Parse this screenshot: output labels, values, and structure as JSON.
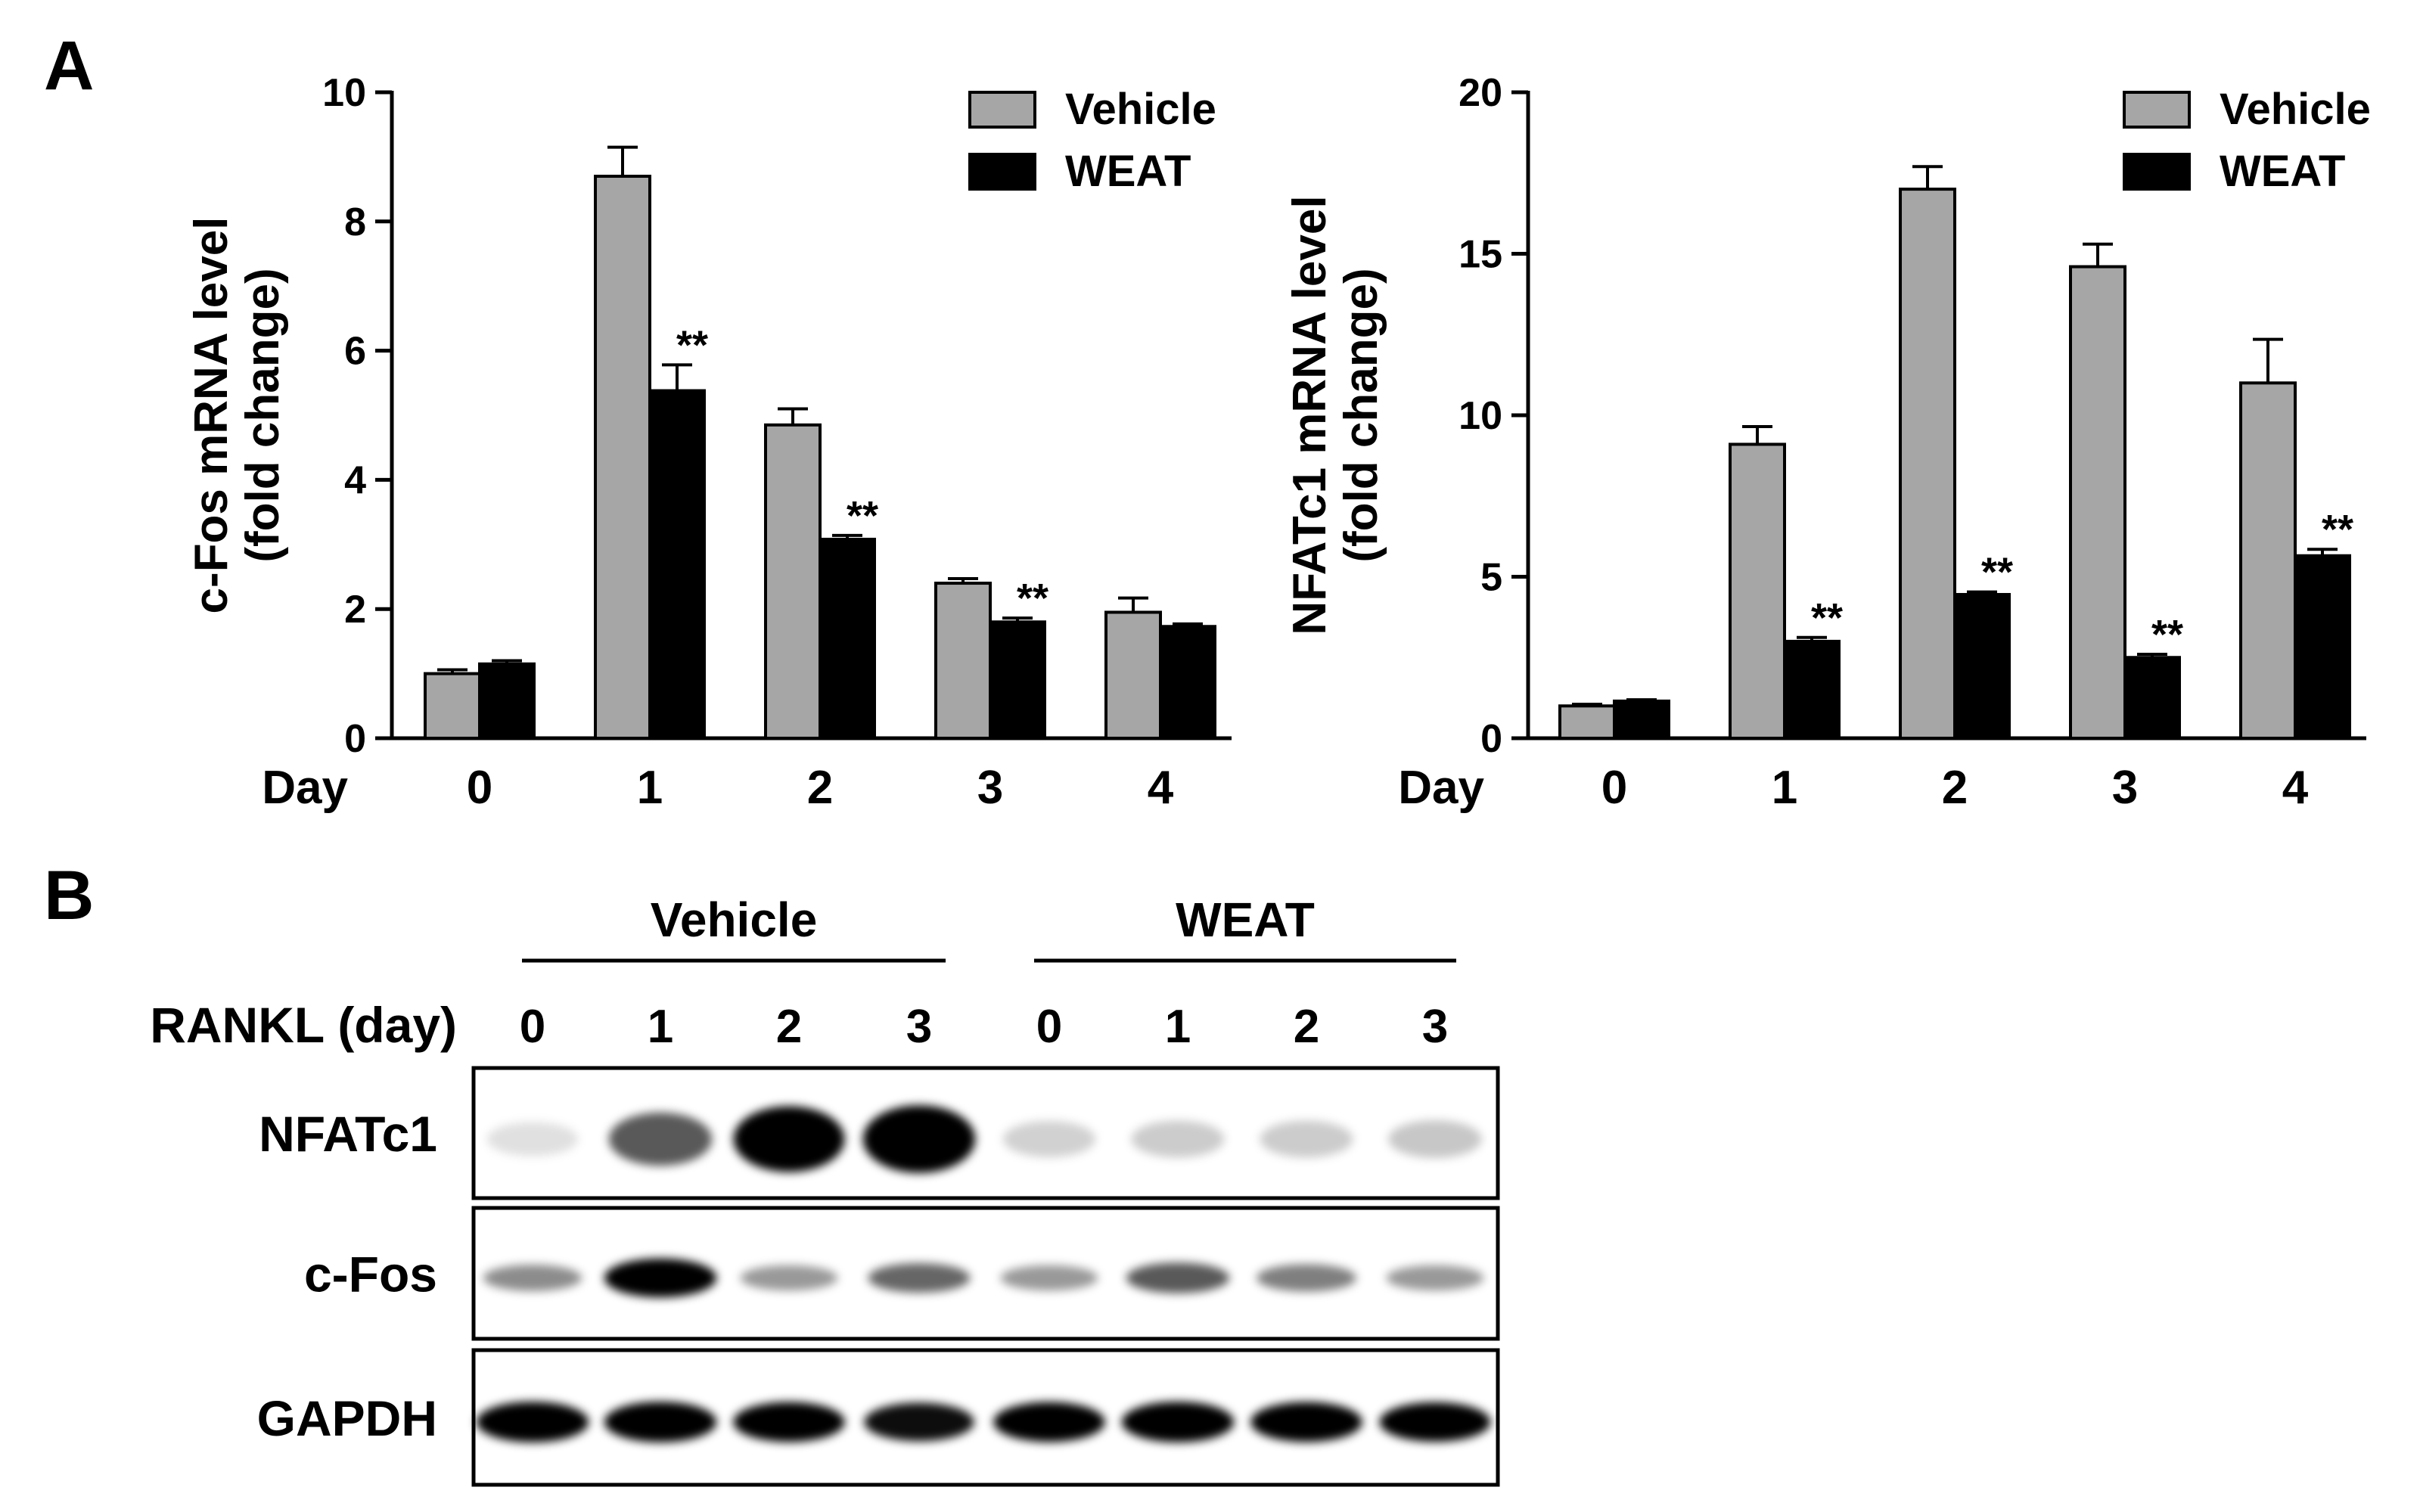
{
  "panel_labels": {
    "a": "A",
    "b": "B"
  },
  "colors": {
    "vehicle": "#a6a6a6",
    "weat": "#000000",
    "axis": "#000000"
  },
  "chart_data": [
    {
      "type": "bar",
      "title": "",
      "xlabel": "Day",
      "ylabel": [
        "c-Fos mRNA level",
        "(fold change)"
      ],
      "categories": [
        "0",
        "1",
        "2",
        "3",
        "4"
      ],
      "ylim": [
        0,
        10
      ],
      "yticks": [
        "0",
        "2",
        "4",
        "6",
        "8",
        "10"
      ],
      "legend_position": "top-right",
      "series": [
        {
          "name": "Vehicle",
          "values": [
            1.0,
            8.7,
            4.85,
            2.4,
            1.95
          ],
          "errors": [
            0.06,
            0.45,
            0.25,
            0.07,
            0.22
          ]
        },
        {
          "name": "WEAT",
          "values": [
            1.15,
            5.38,
            3.08,
            1.8,
            1.73
          ],
          "errors": [
            0.05,
            0.4,
            0.06,
            0.06,
            0.04
          ]
        }
      ],
      "annotations": [
        {
          "category": "1",
          "series": "WEAT",
          "text": "**"
        },
        {
          "category": "2",
          "series": "WEAT",
          "text": "**"
        },
        {
          "category": "3",
          "series": "WEAT",
          "text": "**"
        }
      ]
    },
    {
      "type": "bar",
      "title": "",
      "xlabel": "Day",
      "ylabel": [
        "NFATc1 mRNA level",
        "(fold change)"
      ],
      "categories": [
        "0",
        "1",
        "2",
        "3",
        "4"
      ],
      "ylim": [
        0,
        20
      ],
      "yticks": [
        "0",
        "5",
        "10",
        "15",
        "20"
      ],
      "legend_position": "top-right",
      "series": [
        {
          "name": "Vehicle",
          "values": [
            1.0,
            9.1,
            17.0,
            14.6,
            11.0
          ],
          "errors": [
            0.05,
            0.55,
            0.7,
            0.7,
            1.35
          ]
        },
        {
          "name": "WEAT",
          "values": [
            1.15,
            3.0,
            4.45,
            2.5,
            5.65
          ],
          "errors": [
            0.04,
            0.12,
            0.08,
            0.1,
            0.2
          ]
        }
      ],
      "annotations": [
        {
          "category": "1",
          "series": "WEAT",
          "text": "**"
        },
        {
          "category": "2",
          "series": "WEAT",
          "text": "**"
        },
        {
          "category": "3",
          "series": "WEAT",
          "text": "**"
        },
        {
          "category": "4",
          "series": "WEAT",
          "text": "**"
        }
      ]
    }
  ],
  "western_blot": {
    "groups": [
      "Vehicle",
      "WEAT"
    ],
    "row_header": "RANKL (day)",
    "lanes": [
      "0",
      "1",
      "2",
      "3",
      "0",
      "1",
      "2",
      "3"
    ],
    "rows": [
      {
        "label": "NFATc1",
        "intensity": [
          0.02,
          0.55,
          0.9,
          0.95,
          0.08,
          0.1,
          0.1,
          0.12
        ]
      },
      {
        "label": "c-Fos",
        "intensity": [
          0.35,
          0.95,
          0.3,
          0.5,
          0.3,
          0.55,
          0.4,
          0.3
        ]
      },
      {
        "label": "GAPDH",
        "intensity": [
          0.95,
          0.95,
          0.92,
          0.85,
          0.92,
          0.95,
          0.92,
          0.9
        ]
      }
    ]
  }
}
